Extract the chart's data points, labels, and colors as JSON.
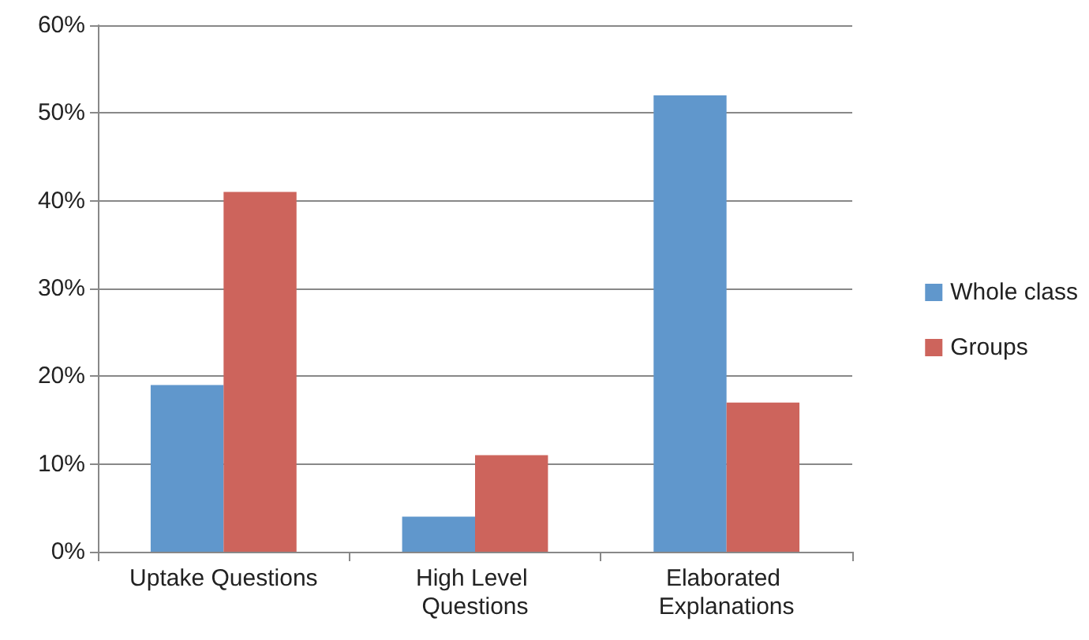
{
  "chart_data": {
    "type": "bar",
    "categories": [
      "Uptake Questions",
      "High Level Questions",
      "Elaborated Explanations"
    ],
    "series": [
      {
        "name": "Whole class",
        "color": "#6097cc",
        "values": [
          19,
          4,
          52
        ]
      },
      {
        "name": "Groups",
        "color": "#cd645c",
        "values": [
          41,
          11,
          17
        ]
      }
    ],
    "ylim": [
      0,
      60
    ],
    "yticks": [
      {
        "value": 0,
        "label": "0%"
      },
      {
        "value": 10,
        "label": "10%"
      },
      {
        "value": 20,
        "label": "20%"
      },
      {
        "value": 30,
        "label": "30%"
      },
      {
        "value": 40,
        "label": "40%"
      },
      {
        "value": 50,
        "label": "50%"
      },
      {
        "value": 60,
        "label": "60%"
      }
    ],
    "grid": "y",
    "legend": "right"
  }
}
